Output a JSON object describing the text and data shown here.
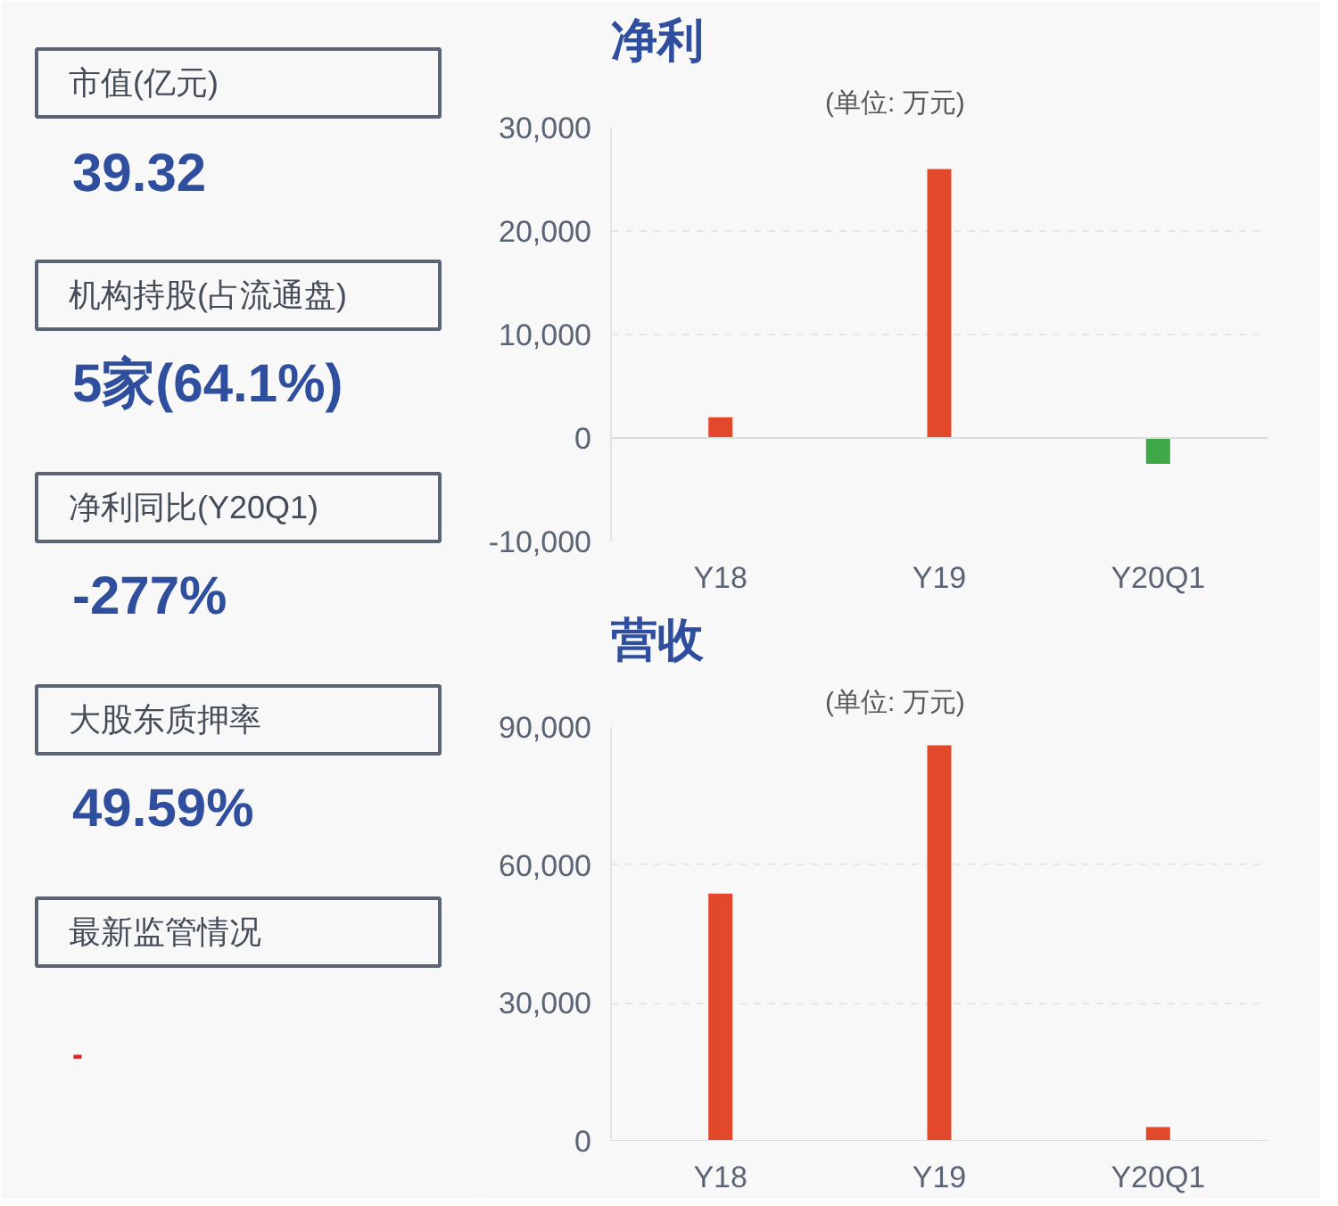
{
  "chart_data": [
    {
      "type": "other",
      "annotations": [
        "市值(亿元)",
        "39.32",
        "机构持股(占流通盘)",
        "5家(64.1%)",
        "净利同比(Y20Q1)",
        "-277%",
        "大股东质押率",
        "49.59%",
        "最新监管情况",
        "-"
      ]
    },
    {
      "type": "bar",
      "title": "净利",
      "subtitle": "(单位: 万元)",
      "categories": [
        "Y18",
        "Y19",
        "Y20Q1"
      ],
      "values": [
        2000,
        26000,
        -2500
      ],
      "colors": [
        "#e2492b",
        "#e2492b",
        "#3fa846"
      ],
      "ylim": [
        -10000,
        30000
      ],
      "yticks": [
        {
          "value": -10000,
          "label": "-10,000"
        },
        0,
        {
          "value": 10000,
          "label": "10,000"
        },
        {
          "value": 20000,
          "label": "20,000"
        },
        {
          "value": 30000,
          "label": "30,000"
        }
      ],
      "grid": "y"
    },
    {
      "type": "bar",
      "title": "营收",
      "subtitle": "(单位: 万元)",
      "categories": [
        "Y18",
        "Y19",
        "Y20Q1"
      ],
      "values": [
        53800,
        86000,
        3000
      ],
      "colors": [
        "#e2492b",
        "#e2492b",
        "#e2492b"
      ],
      "ylim": [
        0,
        90000
      ],
      "yticks": [
        0,
        {
          "value": 30000,
          "label": "30,000"
        },
        {
          "value": 60000,
          "label": "60,000"
        },
        {
          "value": 90000,
          "label": "90,000"
        }
      ],
      "grid": "y"
    }
  ]
}
